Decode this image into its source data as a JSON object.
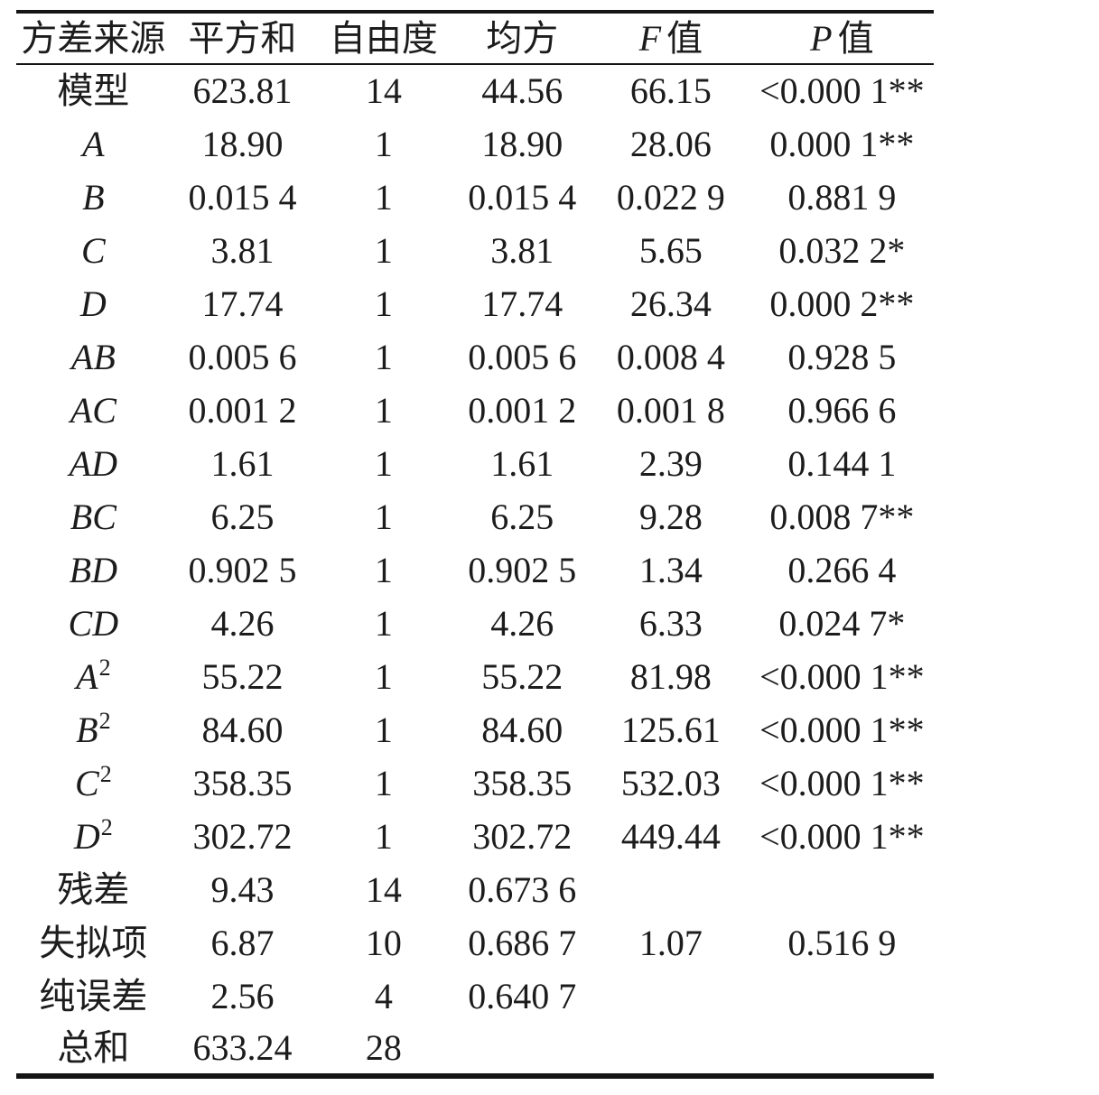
{
  "page": {
    "background": "#ffffff",
    "text_color": "#1c1c1c",
    "rule_color": "#141414"
  },
  "table": {
    "title_semantic": "ANOVA variance analysis table",
    "headers": [
      {
        "italic_prefix": "",
        "label": "方差来源"
      },
      {
        "italic_prefix": "",
        "label": "平方和"
      },
      {
        "italic_prefix": "",
        "label": "自由度"
      },
      {
        "italic_prefix": "",
        "label": "均方"
      },
      {
        "italic_prefix": "F",
        "label": "值"
      },
      {
        "italic_prefix": "P",
        "label": "值"
      }
    ],
    "rows": [
      {
        "source": "模型",
        "sup": "",
        "italic": false,
        "ss": "623.81",
        "df": "14",
        "ms": "44.56",
        "f": "66.15",
        "p": "<0.000 1**"
      },
      {
        "source": "A",
        "sup": "",
        "italic": true,
        "ss": "18.90",
        "df": "1",
        "ms": "18.90",
        "f": "28.06",
        "p": "0.000 1**"
      },
      {
        "source": "B",
        "sup": "",
        "italic": true,
        "ss": "0.015 4",
        "df": "1",
        "ms": "0.015 4",
        "f": "0.022 9",
        "p": "0.881 9"
      },
      {
        "source": "C",
        "sup": "",
        "italic": true,
        "ss": "3.81",
        "df": "1",
        "ms": "3.81",
        "f": "5.65",
        "p": "0.032 2*"
      },
      {
        "source": "D",
        "sup": "",
        "italic": true,
        "ss": "17.74",
        "df": "1",
        "ms": "17.74",
        "f": "26.34",
        "p": "0.000 2**"
      },
      {
        "source": "AB",
        "sup": "",
        "italic": true,
        "ss": "0.005 6",
        "df": "1",
        "ms": "0.005 6",
        "f": "0.008 4",
        "p": "0.928 5"
      },
      {
        "source": "AC",
        "sup": "",
        "italic": true,
        "ss": "0.001 2",
        "df": "1",
        "ms": "0.001 2",
        "f": "0.001 8",
        "p": "0.966 6"
      },
      {
        "source": "AD",
        "sup": "",
        "italic": true,
        "ss": "1.61",
        "df": "1",
        "ms": "1.61",
        "f": "2.39",
        "p": "0.144 1"
      },
      {
        "source": "BC",
        "sup": "",
        "italic": true,
        "ss": "6.25",
        "df": "1",
        "ms": "6.25",
        "f": "9.28",
        "p": "0.008 7**"
      },
      {
        "source": "BD",
        "sup": "",
        "italic": true,
        "ss": "0.902 5",
        "df": "1",
        "ms": "0.902 5",
        "f": "1.34",
        "p": "0.266 4"
      },
      {
        "source": "CD",
        "sup": "",
        "italic": true,
        "ss": "4.26",
        "df": "1",
        "ms": "4.26",
        "f": "6.33",
        "p": "0.024 7*"
      },
      {
        "source": "A",
        "sup": "2",
        "italic": true,
        "ss": "55.22",
        "df": "1",
        "ms": "55.22",
        "f": "81.98",
        "p": "<0.000 1**"
      },
      {
        "source": "B",
        "sup": "2",
        "italic": true,
        "ss": "84.60",
        "df": "1",
        "ms": "84.60",
        "f": "125.61",
        "p": "<0.000 1**"
      },
      {
        "source": "C",
        "sup": "2",
        "italic": true,
        "ss": "358.35",
        "df": "1",
        "ms": "358.35",
        "f": "532.03",
        "p": "<0.000 1**"
      },
      {
        "source": "D",
        "sup": "2",
        "italic": true,
        "ss": "302.72",
        "df": "1",
        "ms": "302.72",
        "f": "449.44",
        "p": "<0.000 1**"
      },
      {
        "source": "残差",
        "sup": "",
        "italic": false,
        "ss": "9.43",
        "df": "14",
        "ms": "0.673 6",
        "f": "",
        "p": ""
      },
      {
        "source": "失拟项",
        "sup": "",
        "italic": false,
        "ss": "6.87",
        "df": "10",
        "ms": "0.686 7",
        "f": "1.07",
        "p": "0.516 9"
      },
      {
        "source": "纯误差",
        "sup": "",
        "italic": false,
        "ss": "2.56",
        "df": "4",
        "ms": "0.640 7",
        "f": "",
        "p": ""
      },
      {
        "source": "总和",
        "sup": "",
        "italic": false,
        "ss": "633.24",
        "df": "28",
        "ms": "",
        "f": "",
        "p": ""
      }
    ]
  }
}
